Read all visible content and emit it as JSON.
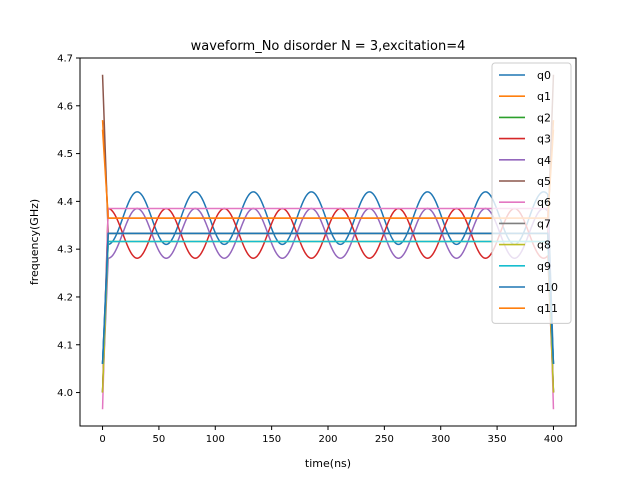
{
  "chart_data": {
    "type": "line",
    "title": "waveform_No disorder  N =  3,excitation=4",
    "xlabel": "time(ns)",
    "ylabel": "frequency(GHz)",
    "xlim": [
      -20,
      420
    ],
    "ylim": [
      3.93,
      4.7
    ],
    "xticks": [
      0,
      50,
      100,
      150,
      200,
      250,
      300,
      350,
      400
    ],
    "yticks": [
      4.0,
      4.1,
      4.2,
      4.3,
      4.4,
      4.5,
      4.6,
      4.7
    ],
    "legend_position": "upper-right",
    "grid": false,
    "x_range": [
      0,
      400
    ],
    "ramp_ns": 5,
    "series": [
      {
        "name": "q0",
        "color": "#1f77b4",
        "start": 4.06,
        "plateau": 4.365,
        "amplitude": 0.055,
        "period": 51.5
      },
      {
        "name": "q1",
        "color": "#ff7f0e",
        "start": 4.57,
        "plateau": 4.365,
        "amplitude": 0.0,
        "period": 0
      },
      {
        "name": "q2",
        "color": "#2ca02c",
        "start": 4.0,
        "plateau": 4.333,
        "amplitude": 0.0,
        "period": 0
      },
      {
        "name": "q3",
        "color": "#d62728",
        "start": 4.0,
        "plateau": 4.333,
        "amplitude": -0.052,
        "period": 51.5
      },
      {
        "name": "q4",
        "color": "#9467bd",
        "start": 4.0,
        "plateau": 4.333,
        "amplitude": 0.052,
        "period": 51.5
      },
      {
        "name": "q5",
        "color": "#8c564b",
        "start": 4.665,
        "plateau": 4.333,
        "amplitude": 0.0,
        "period": 0
      },
      {
        "name": "q6",
        "color": "#e377c2",
        "start": 3.965,
        "plateau": 4.385,
        "amplitude": 0.0,
        "period": 0
      },
      {
        "name": "q7",
        "color": "#7f7f7f",
        "start": 4.06,
        "plateau": 4.333,
        "amplitude": 0.0,
        "period": 0
      },
      {
        "name": "q8",
        "color": "#bcbd22",
        "start": 4.0,
        "plateau": 4.316,
        "amplitude": 0.0,
        "period": 0
      },
      {
        "name": "q9",
        "color": "#17becf",
        "start": 4.06,
        "plateau": 4.316,
        "amplitude": 0.0,
        "period": 0
      },
      {
        "name": "q10",
        "color": "#1f77b4",
        "start": 4.06,
        "plateau": 4.333,
        "amplitude": 0.0,
        "period": 0
      },
      {
        "name": "q11",
        "color": "#ff7f0e",
        "start": 4.55,
        "plateau": 4.365,
        "amplitude": 0.0,
        "period": 0
      }
    ]
  }
}
